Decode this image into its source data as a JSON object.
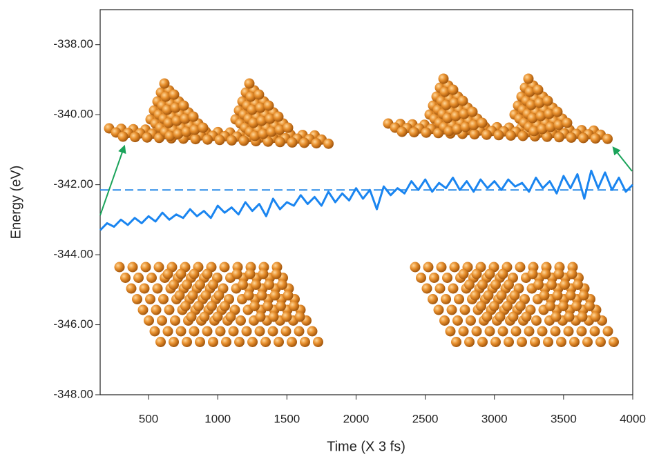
{
  "chart_data": {
    "type": "line",
    "x_label": "Time (X 3 fs)",
    "y_label": "Energy (eV)",
    "xlim": [
      150,
      4000
    ],
    "ylim": [
      -348,
      -337
    ],
    "xticks": [
      500,
      1000,
      1500,
      2000,
      2500,
      3000,
      3500,
      4000
    ],
    "yticks": [
      {
        "value": -338,
        "label": "-338.00"
      },
      {
        "value": -340,
        "label": "-340.00"
      },
      {
        "value": -342,
        "label": "-342.00"
      },
      {
        "value": -344,
        "label": "-344.00"
      },
      {
        "value": -346,
        "label": "-346.00"
      },
      {
        "value": -348,
        "label": "-348.00"
      }
    ],
    "x": [
      150,
      200,
      250,
      300,
      350,
      400,
      450,
      500,
      550,
      600,
      650,
      700,
      750,
      800,
      850,
      900,
      950,
      1000,
      1050,
      1100,
      1150,
      1200,
      1250,
      1300,
      1350,
      1400,
      1450,
      1500,
      1550,
      1600,
      1650,
      1700,
      1750,
      1800,
      1850,
      1900,
      1950,
      2000,
      2050,
      2100,
      2150,
      2200,
      2250,
      2300,
      2350,
      2400,
      2450,
      2500,
      2550,
      2600,
      2650,
      2700,
      2750,
      2800,
      2850,
      2900,
      2950,
      3000,
      3050,
      3100,
      3150,
      3200,
      3250,
      3300,
      3350,
      3400,
      3450,
      3500,
      3550,
      3600,
      3650,
      3700,
      3750,
      3800,
      3850,
      3900,
      3950,
      4000
    ],
    "series": [
      {
        "color": "#1a85f0",
        "values": [
          -343.3,
          -343.1,
          -343.2,
          -343.0,
          -343.15,
          -342.95,
          -343.1,
          -342.9,
          -343.05,
          -342.8,
          -343.0,
          -342.85,
          -342.95,
          -342.7,
          -342.9,
          -342.75,
          -342.95,
          -342.6,
          -342.8,
          -342.65,
          -342.85,
          -342.5,
          -342.75,
          -342.55,
          -342.9,
          -342.4,
          -342.7,
          -342.5,
          -342.6,
          -342.3,
          -342.55,
          -342.35,
          -342.6,
          -342.2,
          -342.5,
          -342.25,
          -342.45,
          -342.1,
          -342.4,
          -342.15,
          -342.7,
          -342.05,
          -342.3,
          -342.1,
          -342.25,
          -341.9,
          -342.15,
          -341.85,
          -342.2,
          -341.95,
          -342.1,
          -341.8,
          -342.15,
          -341.9,
          -342.2,
          -341.85,
          -342.1,
          -341.9,
          -342.15,
          -341.85,
          -342.05,
          -341.95,
          -342.2,
          -341.8,
          -342.1,
          -341.9,
          -342.25,
          -341.75,
          -342.1,
          -341.7,
          -342.4,
          -341.6,
          -342.1,
          -341.65,
          -342.15,
          -341.8,
          -342.2,
          -342.0
        ]
      }
    ],
    "reference_line": {
      "value": -342.15,
      "color": "#2a8be8"
    }
  }
}
